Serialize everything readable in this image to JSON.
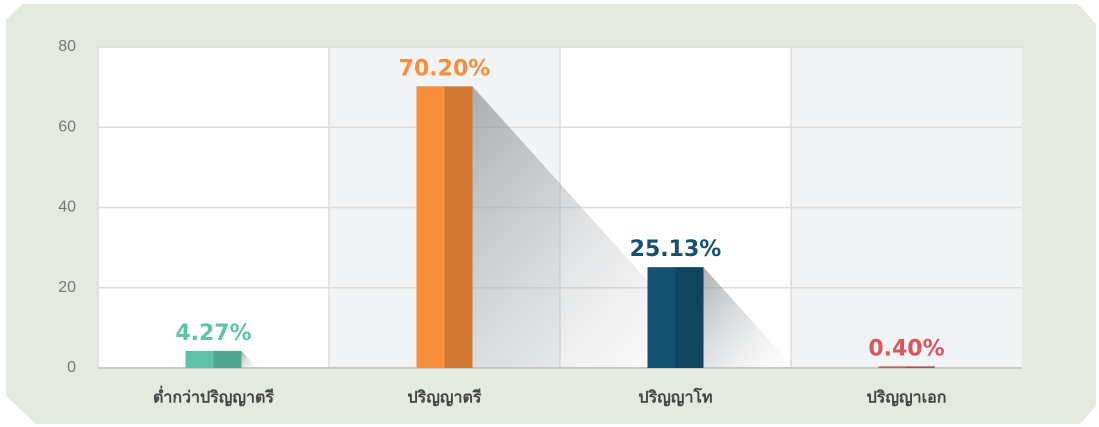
{
  "chart_data": {
    "type": "bar",
    "categories": [
      "ต่ำกว่าปริญญาตรี",
      "ปริญญาตรี",
      "ปริญญาโท",
      "ปริญญาเอก"
    ],
    "values": [
      4.27,
      70.2,
      25.13,
      0.4
    ],
    "value_labels": [
      "4.27%",
      "70.20%",
      "25.13%",
      "0.40%"
    ],
    "colors": [
      "#5fc3a8",
      "#f68e3b",
      "#14506f",
      "#d9555f"
    ],
    "ylim": [
      0,
      80
    ],
    "yticks": [
      0,
      20,
      40,
      60,
      80
    ],
    "grid": true
  }
}
